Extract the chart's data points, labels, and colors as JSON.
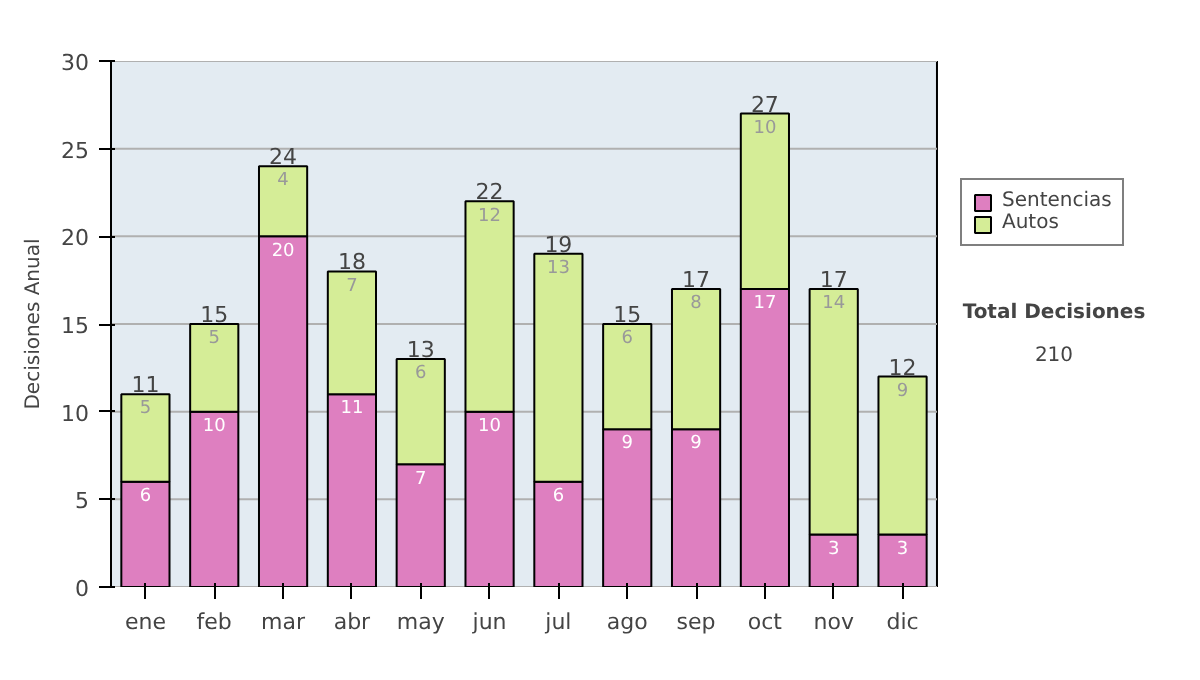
{
  "chart_data": {
    "type": "bar",
    "stacked": true,
    "ylabel": "Decisiones Anual",
    "categories": [
      "ene",
      "feb",
      "mar",
      "abr",
      "may",
      "jun",
      "jul",
      "ago",
      "sep",
      "oct",
      "nov",
      "dic"
    ],
    "series": [
      {
        "name": "Sentencias",
        "color": "#de7fc0",
        "values": [
          6,
          10,
          20,
          11,
          7,
          10,
          6,
          9,
          9,
          17,
          3,
          3
        ]
      },
      {
        "name": "Autos",
        "color": "#d5ed97",
        "values": [
          5,
          5,
          4,
          7,
          6,
          12,
          13,
          6,
          8,
          10,
          14,
          9
        ]
      }
    ],
    "totals": [
      "11",
      "15",
      "24",
      "18",
      "13",
      "22",
      "19",
      "15",
      "17",
      "27",
      "17",
      "12"
    ],
    "data_labels": true,
    "ylim": [
      0,
      30
    ],
    "yticks": [
      0,
      5,
      10,
      15,
      20,
      25,
      30
    ],
    "grid": "y",
    "legend": "right",
    "annotations": [
      "Total Decisiones",
      "210"
    ]
  }
}
